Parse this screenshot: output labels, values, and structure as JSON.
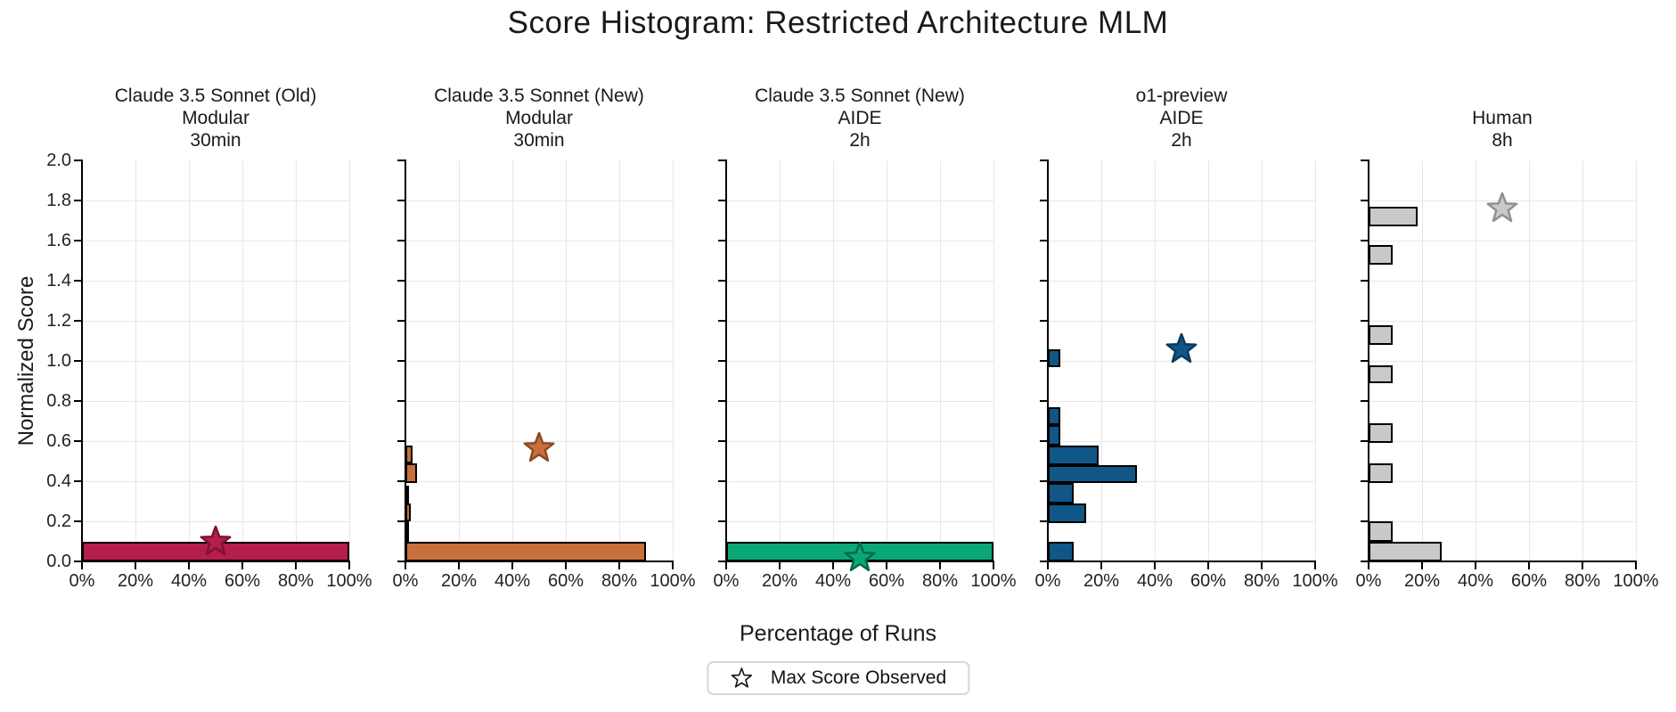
{
  "title": "Score Histogram: Restricted Architecture MLM",
  "axes": {
    "ylabel": "Normalized Score",
    "xlabel": "Percentage of Runs",
    "y_tick_labels": [
      "0.0",
      "0.2",
      "0.4",
      "0.6",
      "0.8",
      "1.0",
      "1.2",
      "1.4",
      "1.6",
      "1.8",
      "2.0"
    ],
    "y_tick_values": [
      0,
      0.2,
      0.4,
      0.6,
      0.8,
      1.0,
      1.2,
      1.4,
      1.6,
      1.8,
      2.0
    ],
    "x_tick_labels": [
      "0%",
      "20%",
      "40%",
      "60%",
      "80%",
      "100%"
    ],
    "x_tick_values": [
      0,
      20,
      40,
      60,
      80,
      100
    ]
  },
  "legend": {
    "symbol": "open-star-icon",
    "label": "Max Score Observed"
  },
  "chart_data": {
    "type": "bar",
    "orientation": "horizontal-histogram",
    "title": "Score Histogram: Restricted Architecture MLM",
    "xlabel": "Percentage of Runs",
    "ylabel": "Normalized Score",
    "ylim": [
      0,
      2.0
    ],
    "xlim_percent": [
      0,
      100
    ],
    "grid": true,
    "legend_position": "bottom-center",
    "star_meaning": "Max Score Observed",
    "subplots": [
      {
        "title_lines": [
          "Claude 3.5 Sonnet (Old)",
          "Modular",
          "30min"
        ],
        "color": "#b51e4b",
        "star_edge_color": "#7d1230",
        "bars": [
          {
            "score_min": 0.0,
            "score_max": 0.1,
            "percent": 100
          }
        ],
        "max_score_star": {
          "x_percent": 50,
          "score": 0.1
        }
      },
      {
        "title_lines": [
          "Claude 3.5 Sonnet (New)",
          "Modular",
          "30min"
        ],
        "color": "#c8703d",
        "star_edge_color": "#8a4a22",
        "bars": [
          {
            "score_min": 0.0,
            "score_max": 0.1,
            "percent": 90
          },
          {
            "score_min": 0.1,
            "score_max": 0.2,
            "percent": 0.7
          },
          {
            "score_min": 0.2,
            "score_max": 0.29,
            "percent": 2.1
          },
          {
            "score_min": 0.29,
            "score_max": 0.38,
            "percent": 1.4
          },
          {
            "score_min": 0.39,
            "score_max": 0.49,
            "percent": 4.2
          },
          {
            "score_min": 0.49,
            "score_max": 0.58,
            "percent": 2.8
          }
        ],
        "max_score_star": {
          "x_percent": 50,
          "score": 0.565
        }
      },
      {
        "title_lines": [
          "Claude 3.5 Sonnet (New)",
          "AIDE",
          "2h"
        ],
        "color": "#0ba877",
        "star_edge_color": "#07694a",
        "bars": [
          {
            "score_min": 0.0,
            "score_max": 0.1,
            "percent": 100
          }
        ],
        "max_score_star": {
          "x_percent": 50,
          "score": 0.02
        }
      },
      {
        "title_lines": [
          "o1-preview",
          "AIDE",
          "2h"
        ],
        "color": "#105687",
        "star_edge_color": "#093a5e",
        "bars": [
          {
            "score_min": 0.0,
            "score_max": 0.1,
            "percent": 9.5
          },
          {
            "score_min": 0.19,
            "score_max": 0.29,
            "percent": 14.3
          },
          {
            "score_min": 0.29,
            "score_max": 0.39,
            "percent": 9.5
          },
          {
            "score_min": 0.39,
            "score_max": 0.48,
            "percent": 33.3
          },
          {
            "score_min": 0.48,
            "score_max": 0.58,
            "percent": 19.0
          },
          {
            "score_min": 0.58,
            "score_max": 0.68,
            "percent": 4.8
          },
          {
            "score_min": 0.68,
            "score_max": 0.77,
            "percent": 4.8
          },
          {
            "score_min": 0.97,
            "score_max": 1.06,
            "percent": 4.8
          }
        ],
        "max_score_star": {
          "x_percent": 50,
          "score": 1.06
        }
      },
      {
        "title_lines": [
          "Human",
          "8h"
        ],
        "color": "#c9c9c9",
        "star_edge_color": "#8f8f8f",
        "bars": [
          {
            "score_min": 0.0,
            "score_max": 0.1,
            "percent": 27.3
          },
          {
            "score_min": 0.1,
            "score_max": 0.2,
            "percent": 9.1
          },
          {
            "score_min": 0.39,
            "score_max": 0.49,
            "percent": 9.1
          },
          {
            "score_min": 0.59,
            "score_max": 0.69,
            "percent": 9.1
          },
          {
            "score_min": 0.89,
            "score_max": 0.98,
            "percent": 9.1
          },
          {
            "score_min": 1.08,
            "score_max": 1.18,
            "percent": 9.1
          },
          {
            "score_min": 1.48,
            "score_max": 1.58,
            "percent": 9.1
          },
          {
            "score_min": 1.67,
            "score_max": 1.77,
            "percent": 18.2
          }
        ],
        "max_score_star": {
          "x_percent": 50,
          "score": 1.76
        }
      }
    ]
  }
}
